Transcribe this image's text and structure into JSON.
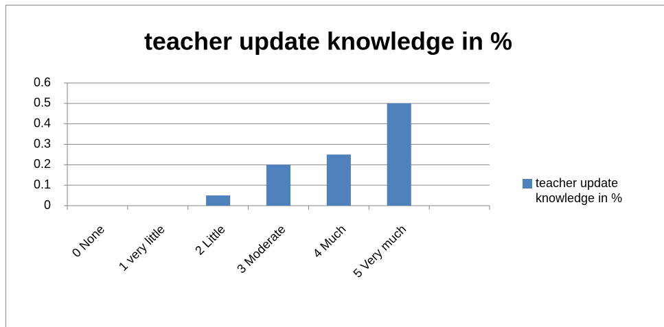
{
  "chart_data": {
    "type": "bar",
    "title": "teacher update knowledge in %",
    "categories": [
      "0 None",
      "1 very little",
      "2 Little",
      "3 Moderate",
      "4 Much",
      "5 Very  much",
      null
    ],
    "series": [
      {
        "name": "teacher update knowledge in %",
        "color": "#4f81bd",
        "values": [
          0,
          0,
          0.05,
          0.2,
          0.25,
          0.5,
          null
        ]
      }
    ],
    "ylim": [
      0,
      0.6
    ],
    "yticks": [
      0,
      0.1,
      0.2,
      0.3,
      0.4,
      0.5,
      0.6
    ],
    "grid": true,
    "legend": "right"
  }
}
